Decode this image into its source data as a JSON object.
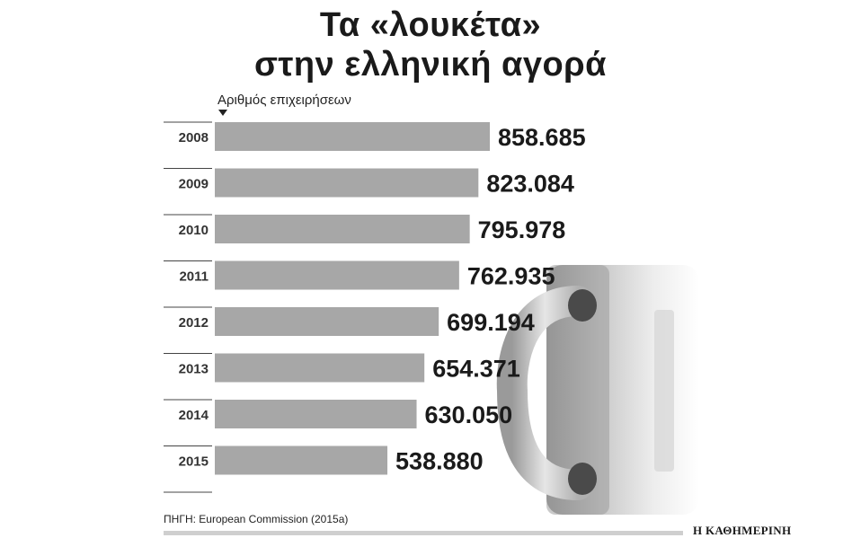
{
  "title_lines": [
    "Τα  «λουκέτα»",
    "στην ελληνική αγορά"
  ],
  "chart_data": {
    "type": "bar",
    "orientation": "horizontal",
    "title": "Τα «λουκέτα» στην ελληνική αγορά",
    "xlabel": "Αριθμός επιχειρήσεων",
    "categories": [
      "2008",
      "2009",
      "2010",
      "2011",
      "2012",
      "2013",
      "2014",
      "2015"
    ],
    "values": [
      858685,
      823084,
      795978,
      762935,
      699194,
      654371,
      630050,
      538880
    ],
    "value_labels": [
      "858.685",
      "823.084",
      "795.978",
      "762.935",
      "699.194",
      "654.371",
      "630.050",
      "538.880"
    ],
    "bar_color": "#a7a7a7",
    "grid": false,
    "legend": "none"
  },
  "source": "ΠΗΓΗ: European Commission (2015a)",
  "brand": "Η ΚΑΘΗΜΕΡΙΝΗ",
  "illustration_icon": "padlock-icon"
}
